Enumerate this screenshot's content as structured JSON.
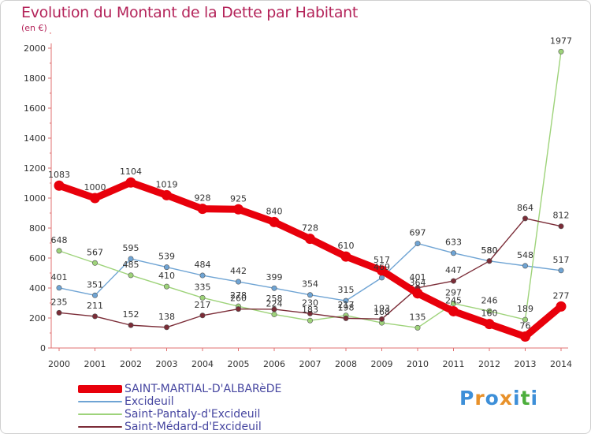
{
  "title": "Evolution du Montant de la Dette par Habitant",
  "subtitle": "(en €)",
  "logo": {
    "letters": [
      "P",
      "r",
      "o",
      "x",
      "i",
      "t",
      "i"
    ],
    "colors": [
      "#3d8fd8",
      "#e8912a",
      "#3d8fd8",
      "#e8912a",
      "#3d8fd8",
      "#4cae3c",
      "#3d8fd8"
    ]
  },
  "chart_data": {
    "type": "line",
    "title": "Evolution du Montant de la Dette par Habitant",
    "ylabel": "(en €)",
    "xlabel": "",
    "x": [
      "2000",
      "2001",
      "2002",
      "2003",
      "2004",
      "2005",
      "2006",
      "2007",
      "2008",
      "2009",
      "2010",
      "2011",
      "2012",
      "2013",
      "2014"
    ],
    "ylim": [
      0,
      2000
    ],
    "yticks": [
      0,
      200,
      400,
      600,
      800,
      1000,
      1200,
      1400,
      1600,
      1800,
      2000
    ],
    "grid": false,
    "legend_position": "bottom-left",
    "series": [
      {
        "name": "Excideuil",
        "color": "#6fa4d4",
        "values": [
          401,
          351,
          595,
          539,
          484,
          442,
          399,
          354,
          315,
          469,
          697,
          633,
          580,
          548,
          517
        ]
      },
      {
        "name": "Saint-Pantaly-d'Excideuil",
        "color": "#9ed37a",
        "values": [
          648,
          567,
          485,
          410,
          335,
          278,
          224,
          183,
          217,
          168,
          135,
          297,
          246,
          189,
          1977
        ]
      },
      {
        "name": "Saint-Médard-d'Excideuil",
        "color": "#7b2c37",
        "values": [
          235,
          211,
          152,
          138,
          217,
          260,
          258,
          230,
          198,
          193,
          401,
          447,
          580,
          864,
          812
        ]
      },
      {
        "name": "SAINT-MARTIAL-D'ALBARèDE",
        "color": "#e8000b",
        "values": [
          1083,
          1000,
          1104,
          1019,
          928,
          925,
          840,
          728,
          610,
          517,
          364,
          245,
          160,
          76,
          277
        ]
      }
    ]
  }
}
